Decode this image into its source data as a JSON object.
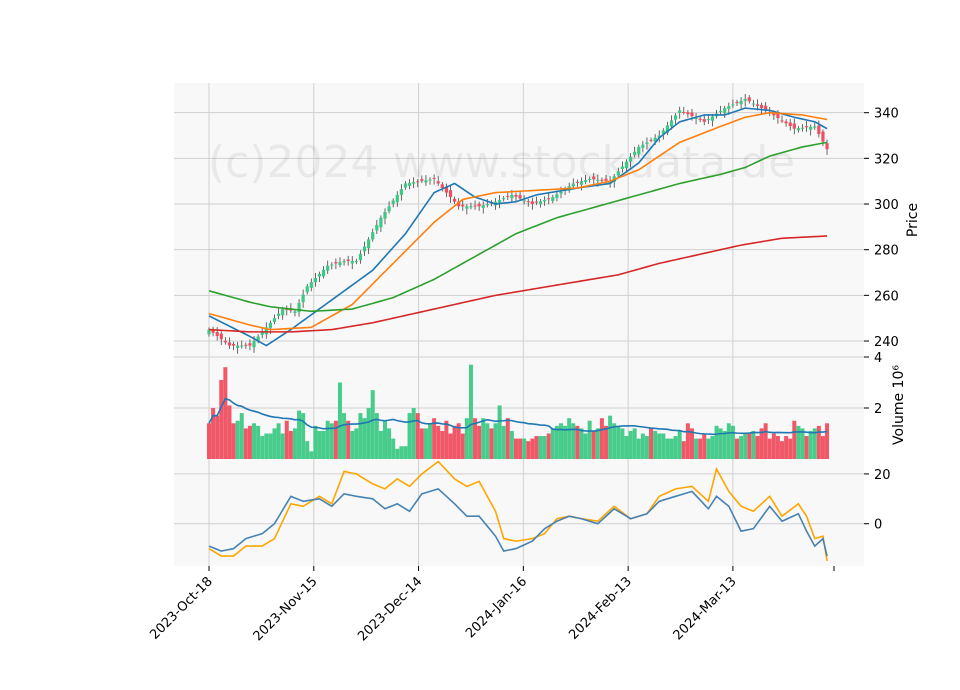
{
  "watermark": "(c)2024 www.stockdata.de",
  "chart_data": {
    "type": "candlestick",
    "dates": [
      "2023-Oct-18",
      "2023-Nov-15",
      "2023-Dec-14",
      "2024-Jan-16",
      "2024-Feb-13",
      "2024-Mar-13"
    ],
    "price_panel": {
      "ylabel": "Price",
      "ylim": [
        233,
        353
      ],
      "yticks": [
        240,
        260,
        280,
        300,
        320,
        340
      ],
      "close_anchors": [
        [
          0,
          245
        ],
        [
          5,
          238
        ],
        [
          10,
          238
        ],
        [
          13,
          244
        ],
        [
          18,
          254
        ],
        [
          21,
          253
        ],
        [
          24,
          264
        ],
        [
          29,
          273
        ],
        [
          33,
          275
        ],
        [
          36,
          275
        ],
        [
          42,
          294
        ],
        [
          48,
          309
        ],
        [
          55,
          311
        ],
        [
          61,
          299
        ],
        [
          66,
          299
        ],
        [
          70,
          301
        ],
        [
          74,
          304
        ],
        [
          79,
          300
        ],
        [
          84,
          303
        ],
        [
          89,
          309
        ],
        [
          93,
          311
        ],
        [
          98,
          310
        ],
        [
          105,
          325
        ],
        [
          110,
          330
        ],
        [
          115,
          341
        ],
        [
          121,
          336
        ],
        [
          126,
          342
        ],
        [
          131,
          346
        ],
        [
          137,
          340
        ],
        [
          143,
          333
        ],
        [
          148,
          334
        ],
        [
          151,
          324
        ]
      ],
      "ma_lines": [
        {
          "color": "#1f77b4",
          "anchors": [
            [
              0,
              251
            ],
            [
              10,
              242
            ],
            [
              14,
              238
            ],
            [
              20,
              245
            ],
            [
              30,
              258
            ],
            [
              40,
              271
            ],
            [
              48,
              287
            ],
            [
              55,
              305
            ],
            [
              60,
              309
            ],
            [
              65,
              303
            ],
            [
              70,
              300
            ],
            [
              75,
              301
            ],
            [
              80,
              304
            ],
            [
              90,
              307
            ],
            [
              98,
              309
            ],
            [
              105,
              318
            ],
            [
              110,
              329
            ],
            [
              115,
              336
            ],
            [
              121,
              339
            ],
            [
              126,
              339
            ],
            [
              131,
              342
            ],
            [
              137,
              341
            ],
            [
              143,
              338
            ],
            [
              148,
              336
            ],
            [
              151,
              333
            ]
          ]
        },
        {
          "color": "#ff7f0e",
          "anchors": [
            [
              0,
              252
            ],
            [
              10,
              247
            ],
            [
              15,
              245
            ],
            [
              25,
              246
            ],
            [
              35,
              256
            ],
            [
              45,
              274
            ],
            [
              55,
              292
            ],
            [
              62,
              302
            ],
            [
              70,
              305
            ],
            [
              80,
              306
            ],
            [
              90,
              307
            ],
            [
              98,
              310
            ],
            [
              105,
              315
            ],
            [
              115,
              327
            ],
            [
              125,
              334
            ],
            [
              131,
              338
            ],
            [
              137,
              340
            ],
            [
              145,
              339
            ],
            [
              151,
              337
            ]
          ]
        },
        {
          "color": "#2ca02c",
          "anchors": [
            [
              0,
              262
            ],
            [
              10,
              257
            ],
            [
              15,
              255
            ],
            [
              25,
              253
            ],
            [
              35,
              254
            ],
            [
              45,
              259
            ],
            [
              55,
              267
            ],
            [
              65,
              277
            ],
            [
              75,
              287
            ],
            [
              85,
              294
            ],
            [
              95,
              299
            ],
            [
              105,
              304
            ],
            [
              115,
              309
            ],
            [
              125,
              313
            ],
            [
              131,
              316
            ],
            [
              137,
              321
            ],
            [
              145,
              325
            ],
            [
              151,
              327
            ]
          ]
        },
        {
          "color": "#d62728",
          "anchors": [
            [
              0,
              245
            ],
            [
              10,
              244
            ],
            [
              20,
              244
            ],
            [
              30,
              245
            ],
            [
              40,
              248
            ],
            [
              50,
              252
            ],
            [
              60,
              256
            ],
            [
              70,
              260
            ],
            [
              80,
              263
            ],
            [
              90,
              266
            ],
            [
              100,
              269
            ],
            [
              110,
              274
            ],
            [
              120,
              278
            ],
            [
              130,
              282
            ],
            [
              140,
              285
            ],
            [
              151,
              286
            ]
          ]
        }
      ]
    },
    "volume_panel": {
      "ylabel": "Volume  10⁶",
      "ylim": [
        0,
        4
      ],
      "yticks": [
        2,
        4
      ],
      "ma_color": "#1f77b4",
      "values": [
        1.4,
        2.0,
        1.7,
        3.1,
        3.6,
        2.1,
        1.4,
        1.5,
        1.8,
        1.2,
        1.3,
        1.4,
        1.3,
        0.9,
        1.0,
        1.0,
        1.2,
        1.4,
        1.0,
        1.5,
        1.1,
        1.2,
        1.9,
        1.8,
        0.7,
        0.3,
        1.3,
        1.1,
        1.1,
        1.5,
        1.4,
        1.5,
        3.0,
        1.8,
        1.5,
        1.1,
        1.2,
        1.8,
        1.6,
        2.0,
        2.7,
        1.8,
        1.1,
        1.5,
        1.2,
        0.8,
        0.4,
        0.5,
        0.5,
        1.8,
        2.0,
        1.8,
        1.2,
        1.2,
        1.4,
        1.6,
        1.3,
        1.1,
        1.5,
        1.0,
        1.3,
        1.4,
        1.0,
        1.6,
        3.7,
        1.6,
        1.3,
        1.6,
        1.4,
        1.2,
        1.4,
        2.1,
        1.3,
        1.6,
        1.1,
        0.8,
        0.8,
        0.8,
        0.7,
        0.8,
        0.9,
        0.9,
        0.9,
        1.0,
        1.2,
        1.3,
        1.4,
        1.3,
        1.6,
        1.4,
        1.3,
        1.2,
        1.0,
        1.5,
        1.1,
        1.2,
        1.6,
        1.3,
        1.7,
        1.4,
        1.3,
        1.2,
        0.9,
        1.1,
        1.2,
        0.8,
        1.0,
        0.9,
        1.2,
        1.1,
        1.0,
        1.0,
        0.8,
        0.8,
        0.9,
        1.1,
        0.7,
        1.4,
        1.2,
        0.8,
        0.8,
        1.0,
        0.8,
        0.9,
        1.3,
        1.2,
        1.1,
        1.4,
        1.3,
        0.8,
        0.9,
        1.0,
        1.0,
        1.1,
        0.9,
        1.2,
        1.4,
        0.8,
        1.0,
        0.9,
        0.7,
        0.9,
        0.8,
        1.5,
        1.3,
        1.2,
        0.9,
        1.1,
        1.2,
        1.3,
        0.9,
        1.4
      ]
    },
    "oscillator_panel": {
      "ylim": [
        -17,
        26
      ],
      "yticks": [
        0,
        20
      ],
      "lines": [
        {
          "color": "#ffa500",
          "anchors": [
            [
              0,
              -10
            ],
            [
              3,
              -13
            ],
            [
              6,
              -13
            ],
            [
              9,
              -9
            ],
            [
              13,
              -9
            ],
            [
              16,
              -6
            ],
            [
              20,
              8
            ],
            [
              23,
              7
            ],
            [
              27,
              11
            ],
            [
              30,
              8
            ],
            [
              33,
              21
            ],
            [
              36,
              20
            ],
            [
              40,
              16
            ],
            [
              43,
              14
            ],
            [
              46,
              18
            ],
            [
              49,
              15
            ],
            [
              52,
              20
            ],
            [
              56,
              25
            ],
            [
              60,
              18
            ],
            [
              63,
              15
            ],
            [
              66,
              17
            ],
            [
              70,
              5
            ],
            [
              72,
              -6
            ],
            [
              75,
              -7
            ],
            [
              79,
              -6
            ],
            [
              82,
              -4
            ],
            [
              85,
              2
            ],
            [
              88,
              3
            ],
            [
              91,
              2
            ],
            [
              95,
              1
            ],
            [
              99,
              7
            ],
            [
              103,
              2
            ],
            [
              107,
              4
            ],
            [
              110,
              11
            ],
            [
              114,
              14
            ],
            [
              118,
              15
            ],
            [
              122,
              9
            ],
            [
              124,
              22
            ],
            [
              127,
              13
            ],
            [
              130,
              7
            ],
            [
              133,
              5
            ],
            [
              137,
              11
            ],
            [
              140,
              3
            ],
            [
              144,
              8
            ],
            [
              146,
              3
            ],
            [
              148,
              -6
            ],
            [
              150,
              -5
            ],
            [
              151,
              -15
            ]
          ]
        },
        {
          "color": "#4682b4",
          "anchors": [
            [
              0,
              -9
            ],
            [
              3,
              -11
            ],
            [
              6,
              -10
            ],
            [
              9,
              -6
            ],
            [
              13,
              -4
            ],
            [
              16,
              0
            ],
            [
              20,
              11
            ],
            [
              23,
              9
            ],
            [
              27,
              10
            ],
            [
              30,
              7
            ],
            [
              33,
              12
            ],
            [
              36,
              11
            ],
            [
              40,
              10
            ],
            [
              43,
              6
            ],
            [
              46,
              8
            ],
            [
              49,
              5
            ],
            [
              52,
              12
            ],
            [
              56,
              14
            ],
            [
              60,
              8
            ],
            [
              63,
              3
            ],
            [
              66,
              3
            ],
            [
              70,
              -5
            ],
            [
              72,
              -11
            ],
            [
              75,
              -10
            ],
            [
              79,
              -7
            ],
            [
              82,
              -2
            ],
            [
              85,
              1
            ],
            [
              88,
              3
            ],
            [
              91,
              2
            ],
            [
              95,
              0
            ],
            [
              99,
              6
            ],
            [
              103,
              2
            ],
            [
              107,
              4
            ],
            [
              110,
              9
            ],
            [
              114,
              11
            ],
            [
              118,
              13
            ],
            [
              122,
              6
            ],
            [
              124,
              11
            ],
            [
              127,
              7
            ],
            [
              130,
              -3
            ],
            [
              133,
              -2
            ],
            [
              137,
              7
            ],
            [
              140,
              1
            ],
            [
              144,
              4
            ],
            [
              146,
              -3
            ],
            [
              148,
              -9
            ],
            [
              150,
              -6
            ],
            [
              151,
              -13
            ]
          ]
        }
      ]
    }
  }
}
